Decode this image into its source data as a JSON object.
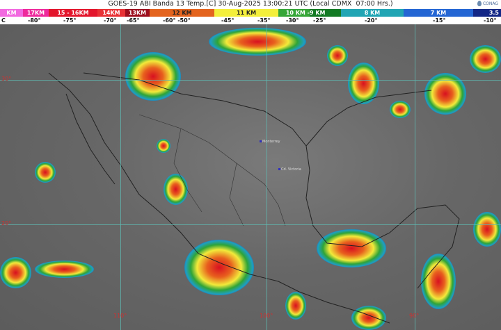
{
  "header": {
    "title": "GOES-19 ABI Banda 13 Temp.[C] 30-Aug-2025 13:00:21 UTC (Local CDMX  07:00 Hrs.)",
    "logo_text": "CONAG"
  },
  "legend": {
    "heights": [
      {
        "label": "KM",
        "color": "#f26ae0"
      },
      {
        "label": "17KM",
        "color": "#ee2a9c"
      },
      {
        "label": "15 - 16KM",
        "color": "#e3162c"
      },
      {
        "label": "14KM",
        "color": "#e83236"
      },
      {
        "label": "13KM",
        "color": "#9c0e1e"
      },
      {
        "label": "12 KM",
        "color": "#e4641e"
      },
      {
        "label": "11 KM",
        "color": "#f4ef3c"
      },
      {
        "label": "10 KM - ",
        "color": "#36a638"
      },
      {
        "label": "9 KM",
        "color": "#137a24"
      },
      {
        "label": "8 KM",
        "color": "#21a5b4"
      },
      {
        "label": "7 KM",
        "color": "#2466d4"
      },
      {
        "label": "3.5",
        "color": "#132786"
      }
    ],
    "temps": [
      "C",
      "-80°",
      "-75°",
      "-70°",
      "-65°",
      "-60°  -50°",
      "-45°",
      "-35°",
      "-30°",
      "-25°",
      "-20°",
      "-15°",
      "-10°"
    ]
  },
  "map": {
    "latitudes": [
      "30°",
      "20°"
    ],
    "longitudes": [
      "110°",
      "100°",
      "90°"
    ],
    "cities": [
      "Monterrey",
      "Cd. Victoria"
    ]
  }
}
